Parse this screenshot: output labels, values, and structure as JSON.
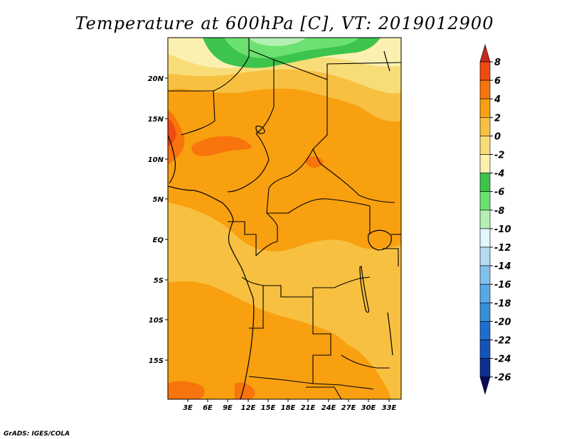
{
  "title": "Temperature at 600hPa [C], VT: 2019012900",
  "credit": "GrADS: IGES/COLA",
  "map": {
    "lat_ticks": [
      "20N",
      "15N",
      "10N",
      "5N",
      "EQ",
      "5S",
      "10S",
      "15S"
    ],
    "lon_ticks": [
      "3E",
      "6E",
      "9E",
      "12E",
      "15E",
      "18E",
      "21E",
      "24E",
      "27E",
      "30E",
      "33E"
    ]
  },
  "colorbar": {
    "labels": [
      "8",
      "6",
      "4",
      "2",
      "0",
      "-2",
      "-4",
      "-6",
      "-8",
      "-10",
      "-12",
      "-14",
      "-16",
      "-18",
      "-20",
      "-22",
      "-24",
      "-26"
    ],
    "colors": {
      "above_8": "#c8281c",
      "6_8": "#f04a10",
      "4_6": "#f8740c",
      "2_4": "#f8a010",
      "0_2": "#f8c040",
      "-2_0": "#f8dc78",
      "-4_-2": "#fcf0b0",
      "-6_-4": "#3cc44c",
      "-8_-6": "#6ce070",
      "-10_-8": "#b4f0b4",
      "-12_-10": "#e2f6fb",
      "-14_-12": "#b4daf4",
      "-16_-14": "#82c0ec",
      "-18_-16": "#58a8e4",
      "-20_-18": "#388ed8",
      "-22_-20": "#1e6ed0",
      "-24_-22": "#1454b8",
      "-26_-24": "#0c3090",
      "below_-26": "#0a0a5c"
    }
  }
}
